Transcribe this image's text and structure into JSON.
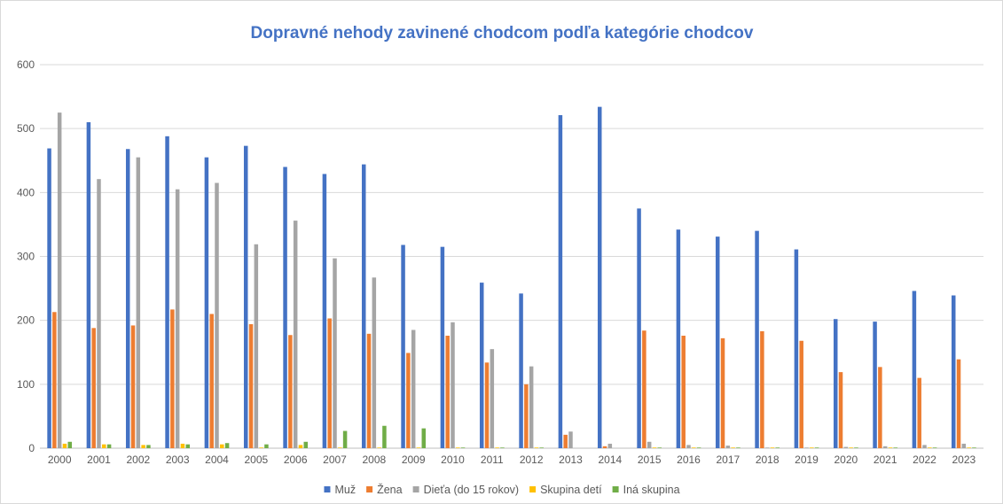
{
  "chart_data": {
    "type": "bar",
    "title": "Dopravné nehody zavinené chodcom podľa kategórie chodcov",
    "xlabel": "",
    "ylabel": "",
    "ylim": [
      0,
      600
    ],
    "yticks": [
      0,
      100,
      200,
      300,
      400,
      500,
      600
    ],
    "grid": true,
    "legend_position": "bottom",
    "categories": [
      "2000",
      "2001",
      "2002",
      "2003",
      "2004",
      "2005",
      "2006",
      "2007",
      "2008",
      "2009",
      "2010",
      "2011",
      "2012",
      "2013",
      "2014",
      "2015",
      "2016",
      "2017",
      "2018",
      "2019",
      "2020",
      "2021",
      "2022",
      "2023"
    ],
    "series": [
      {
        "name": "Muž",
        "color": "#4472c4",
        "values": [
          469,
          510,
          468,
          488,
          455,
          473,
          440,
          429,
          444,
          318,
          315,
          259,
          242,
          521,
          534,
          375,
          342,
          331,
          340,
          311,
          202,
          198,
          246,
          239
        ]
      },
      {
        "name": "Žena",
        "color": "#ed7d31",
        "values": [
          213,
          188,
          192,
          217,
          210,
          194,
          177,
          203,
          179,
          149,
          176,
          134,
          100,
          21,
          3,
          184,
          176,
          172,
          183,
          168,
          119,
          127,
          110,
          139
        ]
      },
      {
        "name": "Dieťa (do 15 rokov)",
        "color": "#a5a5a5",
        "values": [
          525,
          421,
          455,
          405,
          415,
          319,
          356,
          297,
          267,
          185,
          197,
          155,
          128,
          26,
          7,
          10,
          5,
          4,
          1,
          1,
          2,
          3,
          5,
          7
        ]
      },
      {
        "name": "Skupina detí",
        "color": "#ffc000",
        "values": [
          7,
          6,
          5,
          7,
          6,
          1,
          5,
          1,
          1,
          1,
          1,
          1,
          1,
          0,
          0,
          1,
          1,
          1,
          1,
          1,
          1,
          1,
          1,
          1
        ]
      },
      {
        "name": "Iná skupina",
        "color": "#70ad47",
        "values": [
          10,
          6,
          5,
          6,
          8,
          6,
          10,
          27,
          35,
          31,
          1,
          1,
          1,
          0,
          0,
          1,
          1,
          1,
          1,
          1,
          1,
          1,
          1,
          1
        ]
      }
    ]
  }
}
